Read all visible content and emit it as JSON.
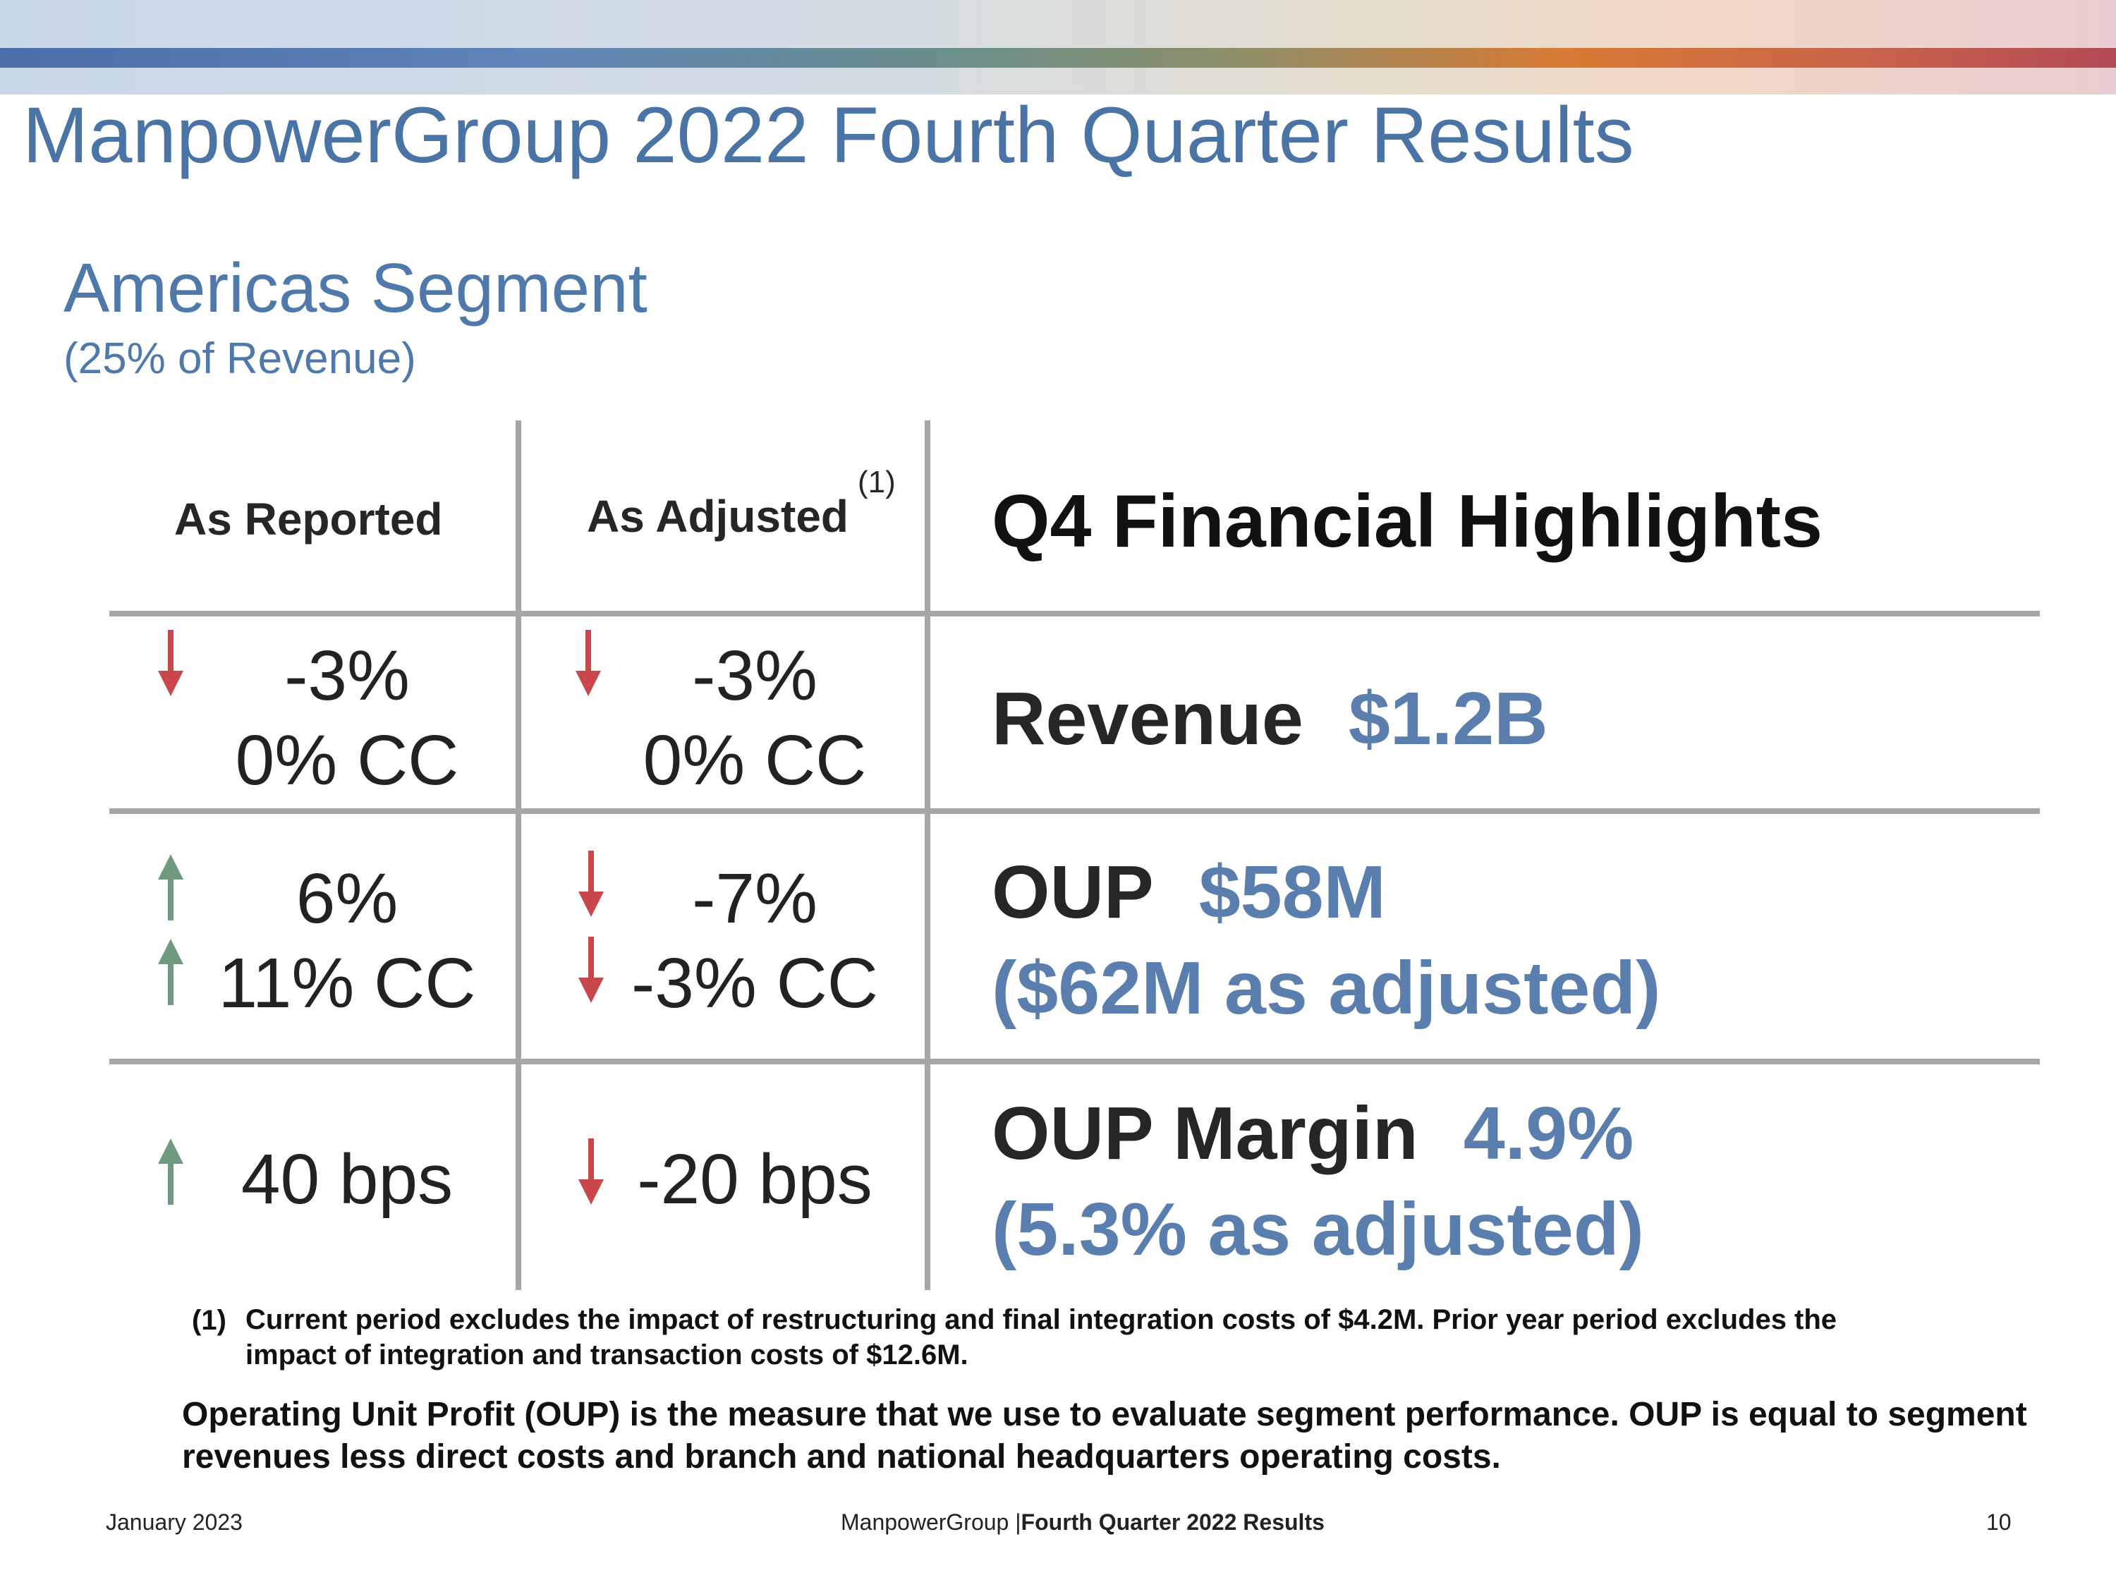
{
  "header": {
    "title": "ManpowerGroup 2022 Fourth Quarter Results"
  },
  "segment": {
    "title": "Americas Segment",
    "subtitle": "(25% of Revenue)"
  },
  "table": {
    "col_reported": "As Reported",
    "col_adjusted": "As Adjusted",
    "col_adjusted_note": "(1)",
    "highlights_title": "Q4 Financial Highlights",
    "rows": [
      {
        "reported": [
          {
            "text": "-3%",
            "arrow": "down"
          },
          {
            "text": "0% CC",
            "arrow": "none"
          }
        ],
        "adjusted": [
          {
            "text": "-3%",
            "arrow": "down"
          },
          {
            "text": "0% CC",
            "arrow": "none"
          }
        ],
        "highlight": {
          "label": "Revenue",
          "value": "$1.2B",
          "extra": ""
        }
      },
      {
        "reported": [
          {
            "text": "6%",
            "arrow": "up"
          },
          {
            "text": "11% CC",
            "arrow": "up"
          }
        ],
        "adjusted": [
          {
            "text": "-7%",
            "arrow": "down"
          },
          {
            "text": "-3% CC",
            "arrow": "down"
          }
        ],
        "highlight": {
          "label": "OUP",
          "value": "$58M",
          "extra": "($62M as adjusted)"
        }
      },
      {
        "reported": [
          {
            "text": "40 bps",
            "arrow": "up"
          }
        ],
        "adjusted": [
          {
            "text": "-20 bps",
            "arrow": "down"
          }
        ],
        "highlight": {
          "label": "OUP Margin",
          "value": "4.9%",
          "extra": "(5.3% as adjusted)"
        }
      }
    ]
  },
  "footnote": {
    "number": "(1)",
    "text": "Current period excludes the impact of restructuring and final integration costs of $4.2M. Prior year period excludes the impact of integration and transaction costs of $12.6M."
  },
  "oup_definition": "Operating Unit Profit (OUP) is the measure that we use to evaluate segment performance.  OUP is equal to segment revenues less direct costs and branch and national headquarters operating costs.",
  "footer": {
    "date": "January 2023",
    "company": "ManpowerGroup",
    "separator": "|",
    "report": "Fourth Quarter 2022 Results",
    "page": "10"
  },
  "colors": {
    "title_blue": "#4a74a6",
    "value_blue": "#5a7fae",
    "arrow_up": "#6f9a7f",
    "arrow_down": "#c8474b",
    "grid": "#a6a6a6"
  },
  "icons": {
    "up": "arrow-up-icon",
    "down": "arrow-down-icon"
  }
}
